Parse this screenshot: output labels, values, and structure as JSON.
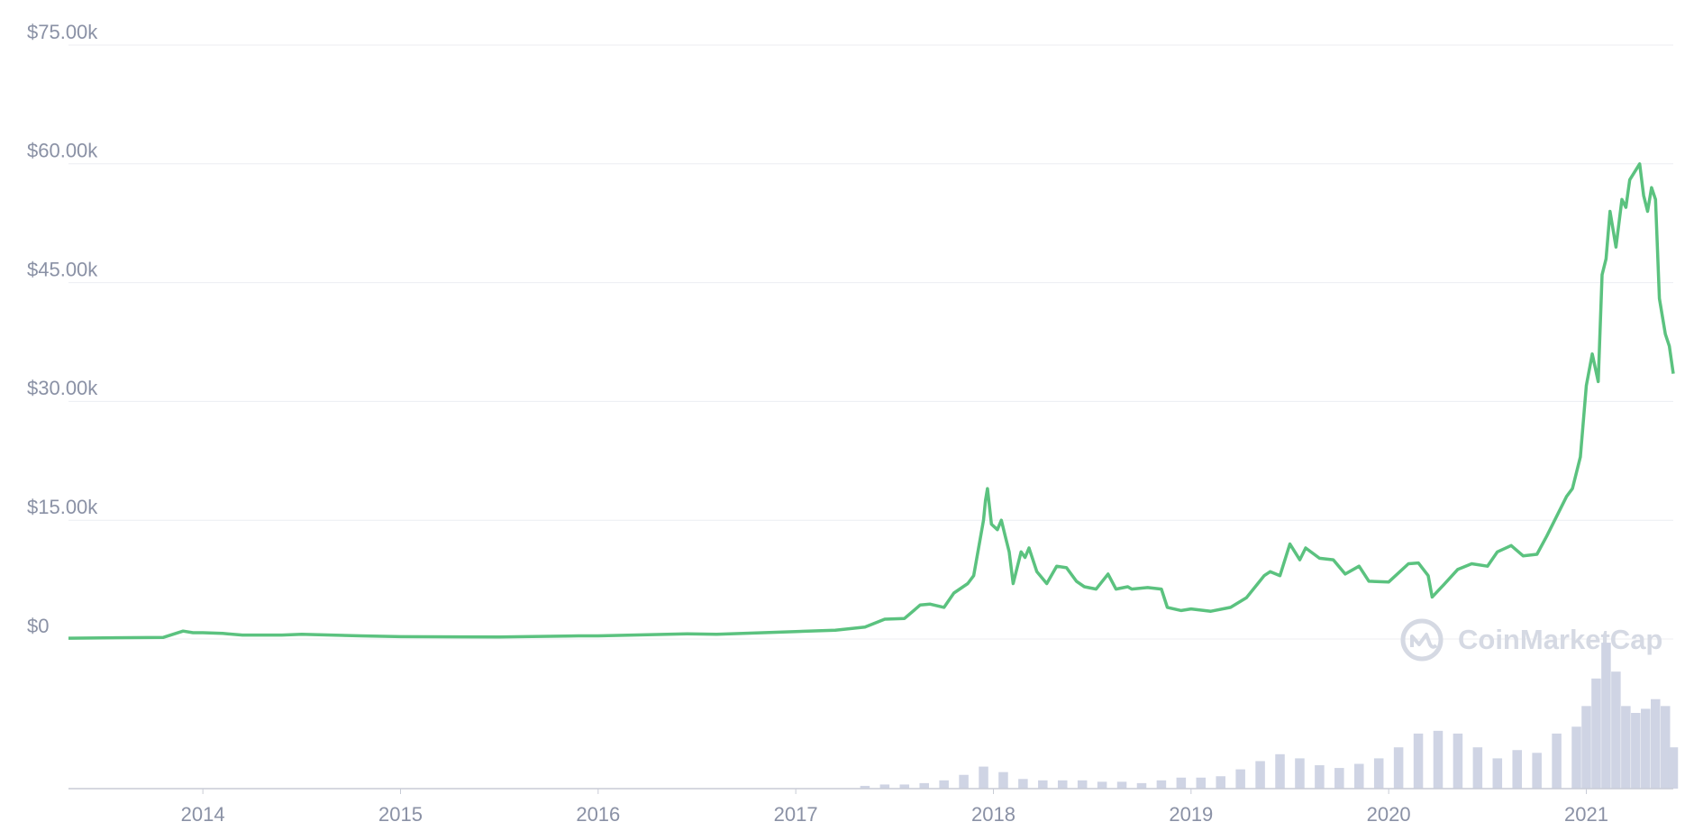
{
  "chart_data": {
    "type": "line",
    "watermark": "CoinMarketCap",
    "xlim": [
      2013.32,
      2021.44
    ],
    "xticks": [
      2014,
      2015,
      2016,
      2017,
      2018,
      2019,
      2020,
      2021
    ],
    "ylim": [
      0,
      75000
    ],
    "yticks": [
      {
        "value": 0,
        "label": "$0"
      },
      {
        "value": 15000,
        "label": "$15.00k"
      },
      {
        "value": 30000,
        "label": "$30.00k"
      },
      {
        "value": 45000,
        "label": "$45.00k"
      },
      {
        "value": 60000,
        "label": "$60.00k"
      },
      {
        "value": 75000,
        "label": "$75.00k"
      }
    ],
    "grid": true,
    "series": [
      {
        "color": "#5bc27f",
        "x": [
          2013.32,
          2013.8,
          2013.9,
          2013.95,
          2014.0,
          2014.1,
          2014.2,
          2014.4,
          2014.5,
          2014.8,
          2015.0,
          2015.5,
          2015.9,
          2016.0,
          2016.45,
          2016.6,
          2017.0,
          2017.2,
          2017.35,
          2017.45,
          2017.55,
          2017.63,
          2017.68,
          2017.75,
          2017.8,
          2017.87,
          2017.9,
          2017.95,
          2017.96,
          2017.97,
          2017.99,
          2018.02,
          2018.04,
          2018.06,
          2018.08,
          2018.1,
          2018.14,
          2018.16,
          2018.18,
          2018.22,
          2018.27,
          2018.32,
          2018.37,
          2018.42,
          2018.46,
          2018.52,
          2018.58,
          2018.62,
          2018.68,
          2018.7,
          2018.78,
          2018.85,
          2018.88,
          2018.95,
          2019.0,
          2019.1,
          2019.2,
          2019.28,
          2019.37,
          2019.4,
          2019.45,
          2019.5,
          2019.55,
          2019.58,
          2019.65,
          2019.72,
          2019.78,
          2019.85,
          2019.9,
          2020.0,
          2020.1,
          2020.15,
          2020.2,
          2020.22,
          2020.28,
          2020.35,
          2020.42,
          2020.5,
          2020.55,
          2020.62,
          2020.68,
          2020.75,
          2020.8,
          2020.85,
          2020.9,
          2020.93,
          2020.97,
          2021.0,
          2021.03,
          2021.06,
          2021.08,
          2021.1,
          2021.12,
          2021.15,
          2021.18,
          2021.2,
          2021.22,
          2021.27,
          2021.29,
          2021.31,
          2021.33,
          2021.35,
          2021.37,
          2021.4,
          2021.42,
          2021.44
        ],
        "values": [
          100,
          200,
          1000,
          800,
          800,
          700,
          500,
          500,
          600,
          400,
          300,
          250,
          400,
          400,
          650,
          600,
          950,
          1100,
          1500,
          2500,
          2600,
          4300,
          4400,
          4000,
          5800,
          7000,
          8000,
          15000,
          17500,
          19000,
          14500,
          13800,
          15000,
          13000,
          11000,
          7000,
          11000,
          10300,
          11500,
          8500,
          7000,
          9200,
          9000,
          7300,
          6600,
          6300,
          8200,
          6300,
          6600,
          6300,
          6500,
          6300,
          4000,
          3600,
          3800,
          3500,
          4000,
          5200,
          8000,
          8500,
          8000,
          12000,
          10000,
          11500,
          10200,
          10000,
          8200,
          9200,
          7300,
          7200,
          9500,
          9600,
          8000,
          5300,
          6900,
          8800,
          9500,
          9200,
          11000,
          11800,
          10500,
          10700,
          13000,
          15500,
          18000,
          19000,
          23000,
          32000,
          36000,
          32500,
          46000,
          48000,
          54000,
          49500,
          55500,
          54500,
          58000,
          60000,
          56000,
          54000,
          57000,
          55500,
          43000,
          38500,
          37000,
          33500
        ]
      }
    ],
    "volume": {
      "color": "#cfd4e4",
      "ylim": [
        0,
        110
      ],
      "x": [
        2017.35,
        2017.45,
        2017.55,
        2017.65,
        2017.75,
        2017.85,
        2017.95,
        2018.05,
        2018.15,
        2018.25,
        2018.35,
        2018.45,
        2018.55,
        2018.65,
        2018.75,
        2018.85,
        2018.95,
        2019.05,
        2019.15,
        2019.25,
        2019.35,
        2019.45,
        2019.55,
        2019.65,
        2019.75,
        2019.85,
        2019.95,
        2020.05,
        2020.15,
        2020.25,
        2020.35,
        2020.45,
        2020.55,
        2020.65,
        2020.75,
        2020.85,
        2020.95,
        2021.0,
        2021.05,
        2021.1,
        2021.15,
        2021.2,
        2021.25,
        2021.3,
        2021.35,
        2021.4,
        2021.44
      ],
      "values": [
        2,
        3,
        3,
        4,
        6,
        10,
        16,
        12,
        7,
        6,
        6,
        6,
        5,
        5,
        4,
        6,
        8,
        8,
        9,
        14,
        20,
        25,
        22,
        17,
        15,
        18,
        22,
        30,
        40,
        42,
        40,
        30,
        22,
        28,
        26,
        40,
        45,
        60,
        80,
        106,
        85,
        60,
        55,
        58,
        65,
        60,
        30
      ]
    }
  }
}
